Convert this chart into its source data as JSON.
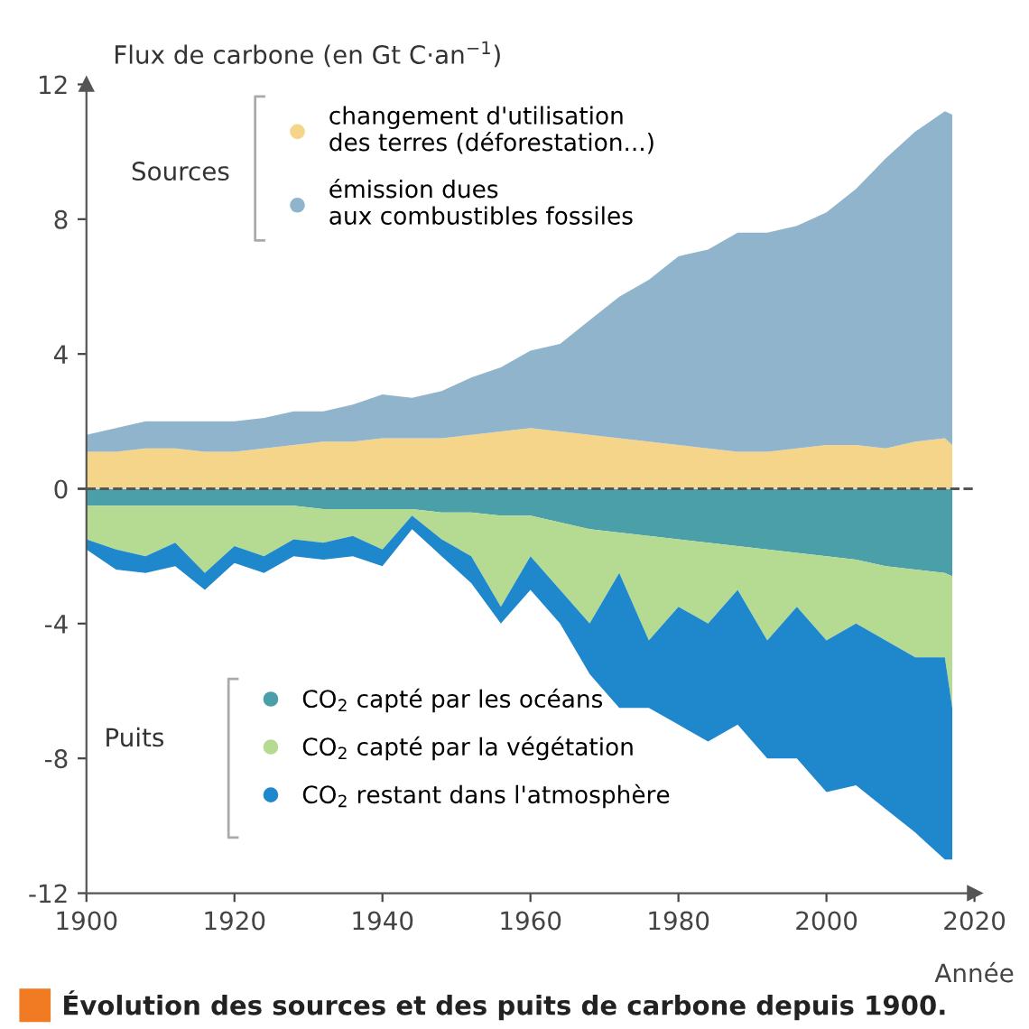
{
  "chart_data": [
    {
      "type": "area",
      "stacked": true,
      "ylabel": "Flux de carbone (en Gt C·an$^{−1}$)",
      "annotations": [
        "Sources"
      ],
      "x": [
        1900,
        1904,
        1908,
        1912,
        1916,
        1920,
        1924,
        1928,
        1932,
        1936,
        1940,
        1944,
        1948,
        1952,
        1956,
        1960,
        1964,
        1968,
        1972,
        1976,
        1980,
        1984,
        1988,
        1992,
        1996,
        2000,
        2004,
        2008,
        2012,
        2016,
        2017
      ],
      "series": [
        {
          "name": "changement d'utilisation\ndes terres (déforestation...)",
          "color": "#f5d58a",
          "values": [
            1.1,
            1.1,
            1.2,
            1.2,
            1.1,
            1.1,
            1.2,
            1.3,
            1.4,
            1.4,
            1.5,
            1.5,
            1.5,
            1.6,
            1.7,
            1.8,
            1.7,
            1.6,
            1.5,
            1.4,
            1.3,
            1.2,
            1.1,
            1.1,
            1.2,
            1.3,
            1.3,
            1.2,
            1.4,
            1.5,
            1.3
          ]
        },
        {
          "name": "émission dues\naux combustibles fossiles",
          "color": "#8fb4cc",
          "values": [
            0.5,
            0.7,
            0.8,
            0.8,
            0.9,
            0.9,
            0.9,
            1.0,
            0.9,
            1.1,
            1.3,
            1.2,
            1.4,
            1.7,
            1.9,
            2.3,
            2.6,
            3.4,
            4.2,
            4.8,
            5.6,
            5.9,
            6.5,
            6.5,
            6.6,
            6.9,
            7.6,
            8.6,
            9.2,
            9.7,
            9.8
          ]
        }
      ],
      "xlim": [
        1900,
        2020
      ],
      "ylim": [
        0,
        12
      ],
      "yticks": [
        0,
        4,
        8,
        12
      ],
      "tick_labels": "y",
      "grid": false,
      "legend": "top left"
    },
    {
      "type": "area",
      "stacked": true,
      "xlabel": "Année",
      "annotations": [
        "Puits",
        "Évolution des sources et des puits de carbone depuis 1900."
      ],
      "x": [
        1900,
        1904,
        1908,
        1912,
        1916,
        1920,
        1924,
        1928,
        1932,
        1936,
        1940,
        1944,
        1948,
        1952,
        1956,
        1960,
        1964,
        1968,
        1972,
        1976,
        1980,
        1984,
        1988,
        1992,
        1996,
        2000,
        2004,
        2008,
        2012,
        2016,
        2017
      ],
      "series": [
        {
          "name": "CO$_{2}$ capté par les océans",
          "color": "#4a9fa8",
          "values": [
            -0.5,
            -0.5,
            -0.5,
            -0.5,
            -0.5,
            -0.5,
            -0.5,
            -0.5,
            -0.6,
            -0.6,
            -0.6,
            -0.6,
            -0.7,
            -0.7,
            -0.8,
            -0.8,
            -1.0,
            -1.2,
            -1.3,
            -1.4,
            -1.5,
            -1.6,
            -1.7,
            -1.8,
            -1.9,
            -2.0,
            -2.1,
            -2.3,
            -2.4,
            -2.5,
            -2.6
          ]
        },
        {
          "name": "CO$_{2}$ capté par la végétation",
          "color": "#b5db92",
          "values": [
            -1.0,
            -1.3,
            -1.5,
            -1.1,
            -2.0,
            -1.2,
            -1.5,
            -1.0,
            -1.0,
            -0.8,
            -1.2,
            -0.2,
            -0.8,
            -1.3,
            -2.7,
            -1.2,
            -2.0,
            -2.8,
            -1.2,
            -3.1,
            -2.0,
            -2.4,
            -1.3,
            -2.7,
            -1.6,
            -2.5,
            -1.9,
            -2.2,
            -2.6,
            -2.5,
            -3.9
          ]
        },
        {
          "name": "CO$_{2}$ restant dans l'atmosphère",
          "color": "#1f87cc",
          "values": [
            -0.3,
            -0.6,
            -0.5,
            -0.7,
            -0.5,
            -0.5,
            -0.5,
            -0.5,
            -0.5,
            -0.6,
            -0.5,
            -0.4,
            -0.5,
            -0.8,
            -0.5,
            -1.0,
            -1.0,
            -1.5,
            -4.0,
            -2.0,
            -3.5,
            -3.5,
            -4.0,
            -3.5,
            -4.5,
            -4.5,
            -4.8,
            -5.0,
            -5.2,
            -6.0,
            -4.5
          ]
        }
      ],
      "xlim": [
        1900,
        2020
      ],
      "ylim": [
        -12,
        0
      ],
      "xticks": [
        1900,
        1920,
        1940,
        1960,
        1980,
        2000,
        2020
      ],
      "yticks": [
        -12,
        -8,
        -4,
        {
          "value": 0,
          "label": null
        }
      ],
      "ref_lines": [
        {
          "axis": "y",
          "value": 0,
          "color": "#555555",
          "line_style": "dashed"
        }
      ],
      "grid": false,
      "legend": "left"
    }
  ]
}
